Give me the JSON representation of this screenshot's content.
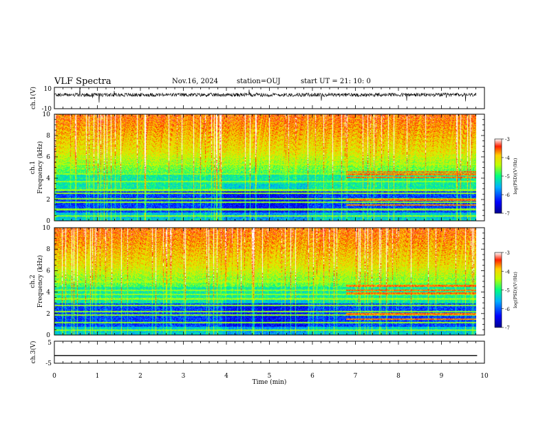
{
  "header": {
    "title": "VLF Spectra",
    "date": "Nov.16, 2024",
    "station": "station=OUJ",
    "start": "start  UT  =   21: 10: 0"
  },
  "chart_data": [
    {
      "type": "line",
      "panel": "ch1-waveform",
      "ylabel": "ch.1(V)",
      "yticklabels": [
        "10",
        "-10"
      ],
      "ylim": [
        -10,
        10
      ],
      "xlim": [
        0,
        10
      ],
      "series": [
        {
          "values_description_omitted": true
        }
      ],
      "color": "#000000"
    },
    {
      "type": "heatmap",
      "panel": "ch1-spectrogram",
      "ylabel": "ch.1\nFrequency (kHz)",
      "ylabel_lines": [
        "ch.1",
        "Frequency (kHz)"
      ],
      "yticks": [
        0,
        2,
        4,
        6,
        8,
        10
      ],
      "ylim": [
        0,
        10
      ],
      "xlim": [
        0,
        9.83
      ],
      "colorbar": {
        "label": "log(PSD)(V²/Hz)",
        "ticks": [
          "-3",
          "-4",
          "-5",
          "-6",
          "-7"
        ],
        "range": [
          -7,
          -3
        ]
      },
      "bands_khz": [
        0.5,
        1.1,
        1.8,
        2.1,
        2.6,
        2.9,
        3.7,
        4.4,
        5.3
      ],
      "late_bands_khz": [
        4.1,
        4.4,
        4.6,
        1.5,
        2.0
      ]
    },
    {
      "type": "heatmap",
      "panel": "ch2-spectrogram",
      "ylabel_lines": [
        "ch.2",
        "Frequency (kHz)"
      ],
      "yticks": [
        0,
        2,
        4,
        6,
        8,
        10
      ],
      "ylim": [
        0,
        10
      ],
      "xlim": [
        0,
        9.83
      ],
      "colorbar": {
        "label": "log(PSD)(V²/Hz)",
        "ticks": [
          "-3",
          "-4",
          "-5",
          "-6",
          "-7"
        ],
        "range": [
          -7,
          -3
        ]
      },
      "bands_khz": [
        0.5,
        1.2,
        1.9,
        2.2,
        2.8,
        3.4,
        3.8,
        4.2,
        5.0
      ],
      "late_bands_khz": [
        3.9,
        4.2,
        4.6,
        2.0,
        1.5
      ]
    },
    {
      "type": "line",
      "panel": "ch3-waveform",
      "ylabel": "ch.3(V)",
      "yticklabels": [
        "5",
        "-5"
      ],
      "ylim": [
        -5,
        5
      ],
      "xlim": [
        0,
        10
      ],
      "series": [
        {
          "x": [
            0,
            9.83
          ],
          "y": [
            -1.5,
            -1.5
          ]
        }
      ],
      "color": "#000000"
    }
  ],
  "xaxis": {
    "label": "Time  (min)",
    "ticks": [
      "0",
      "1",
      "2",
      "3",
      "4",
      "5",
      "6",
      "7",
      "8",
      "9",
      "10"
    ],
    "range": [
      0,
      10
    ]
  }
}
